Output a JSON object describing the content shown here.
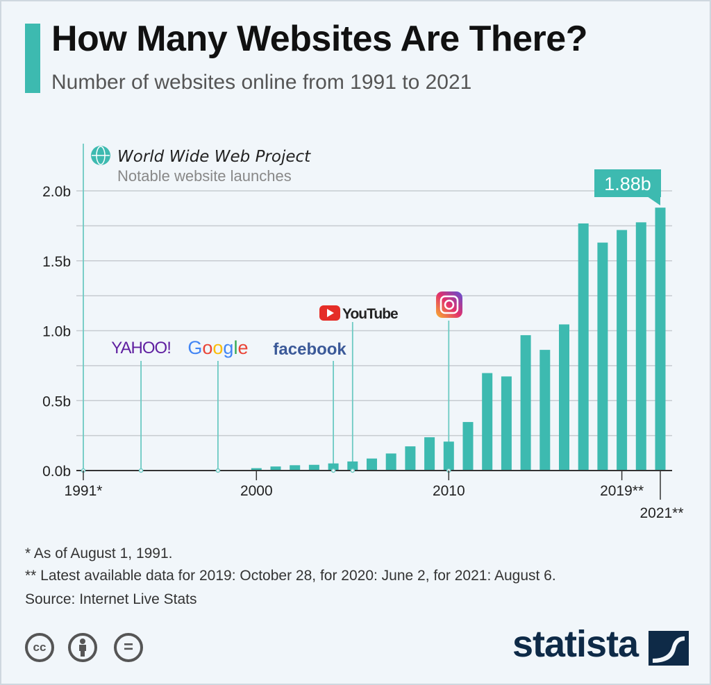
{
  "title": "How Many Websites Are There?",
  "subtitle": "Number of websites online from 1991 to 2021",
  "colors": {
    "accent": "#3dbab0",
    "text": "#111111"
  },
  "chart_data": {
    "type": "bar",
    "title": "How Many Websites Are There?",
    "ylabel": "Number of websites",
    "ylim": [
      0,
      2.0
    ],
    "yticks": [
      {
        "v": 0,
        "label": "0.0b"
      },
      {
        "v": 0.5,
        "label": "0.5b"
      },
      {
        "v": 1.0,
        "label": "1.0b"
      },
      {
        "v": 1.5,
        "label": "1.5b"
      },
      {
        "v": 2.0,
        "label": "2.0b"
      }
    ],
    "xticks": [
      {
        "year": 1991,
        "label": "1991*"
      },
      {
        "year": 2000,
        "label": "2000"
      },
      {
        "year": 2010,
        "label": "2010"
      },
      {
        "year": 2019,
        "label": "2019**"
      },
      {
        "year": 2021,
        "label": "2021**"
      }
    ],
    "x": [
      1991,
      1992,
      1993,
      1994,
      1995,
      1996,
      1997,
      1998,
      1999,
      2000,
      2001,
      2002,
      2003,
      2004,
      2005,
      2006,
      2007,
      2008,
      2009,
      2010,
      2011,
      2012,
      2013,
      2014,
      2015,
      2016,
      2017,
      2018,
      2019,
      2020,
      2021
    ],
    "values": [
      1e-06,
      1e-05,
      0.0001,
      0.003,
      0.0002,
      0.0003,
      0.001,
      0.002,
      0.003,
      0.017,
      0.029,
      0.038,
      0.041,
      0.051,
      0.065,
      0.086,
      0.122,
      0.173,
      0.238,
      0.207,
      0.347,
      0.697,
      0.673,
      0.968,
      0.863,
      1.045,
      1.767,
      1.63,
      1.72,
      1.775,
      1.88
    ],
    "highlight": {
      "year": 2021,
      "label": "1.88b"
    },
    "legend": [
      {
        "label": "World Wide Web Project",
        "icon": "globe-icon"
      },
      {
        "label": "Notable website launches"
      }
    ],
    "annotations": [
      {
        "year": 1991,
        "label": "World Wide Web Project"
      },
      {
        "year": 1994,
        "label": "YAHOO!"
      },
      {
        "year": 1998,
        "label": "Google"
      },
      {
        "year": 2004,
        "label": "facebook"
      },
      {
        "year": 2005,
        "label": "YouTube"
      },
      {
        "year": 2010,
        "label": "Instagram",
        "icon": "instagram-icon"
      }
    ]
  },
  "footnotes": {
    "note1": "*   As of August 1, 1991.",
    "note2": "** Latest available data for 2019: October 28, for 2020: June 2, for 2021: August 6.",
    "source": "Source: Internet Live Stats"
  },
  "license_icons": [
    "cc",
    "by",
    "nd"
  ],
  "cc_label": "cc",
  "nd_label": "=",
  "brand": "statista"
}
